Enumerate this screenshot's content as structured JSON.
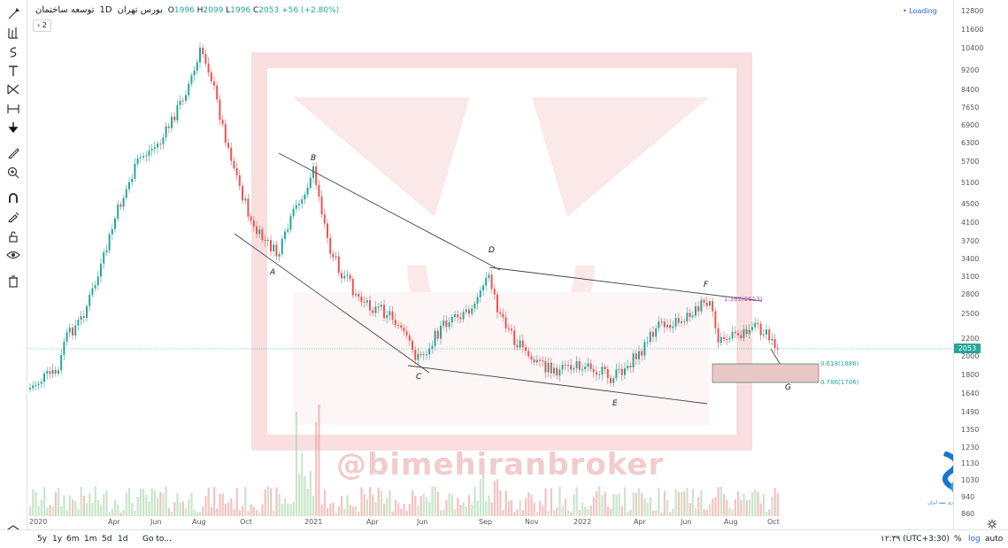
{
  "legend": {
    "symbol_name": "توسعه ساختمان",
    "interval": "1D",
    "exchange": "بورس تهران",
    "open_label": "O",
    "open": "1996",
    "high_label": "H",
    "high": "2099",
    "low_label": "L",
    "low": "1996",
    "close_label": "C",
    "close": "2053",
    "change": "+56 (+2.80%)"
  },
  "collapse_button": "2",
  "status": "Loading",
  "last_price": "2053",
  "price_axis": [
    "12800",
    "11600",
    "10400",
    "9200",
    "8400",
    "7650",
    "6900",
    "6300",
    "5700",
    "5100",
    "4500",
    "4100",
    "3700",
    "3400",
    "3100",
    "2800",
    "2500",
    "2200",
    "2000",
    "1800",
    "1640",
    "1490",
    "1350",
    "1230",
    "1130",
    "1030",
    "940",
    "860"
  ],
  "time_axis": [
    "2020",
    "Apr",
    "Jun",
    "Aug",
    "Oct",
    "2021",
    "Apr",
    "Jun",
    "Sep",
    "Nov",
    "2022",
    "Apr",
    "Jun",
    "Aug",
    "Oct"
  ],
  "wave_labels": [
    "A",
    "B",
    "C",
    "D",
    "E",
    "F",
    "G"
  ],
  "fib_levels": [
    {
      "ratio": "0.618",
      "price": "1886",
      "label": "0.618(1886)"
    },
    {
      "ratio": "0.786",
      "price": "1706",
      "label": "0.786(1706)"
    }
  ],
  "fib_top": "1.382(2613)",
  "watermark": "@bimehiranbroker",
  "logo_caption": "شرکت کارگزاری بیمه ایران",
  "bottom_bar": {
    "ranges": [
      "5y",
      "1y",
      "6m",
      "1m",
      "5d",
      "1d"
    ],
    "goto": "Go to...",
    "clock": "۱۲:۳۹ (UTC+3:30)",
    "percent": "%",
    "log": "log",
    "auto": "auto"
  },
  "colors": {
    "up": "#26a69a",
    "down": "#ef5350",
    "accent": "#2962ff",
    "watermark": "#f2cccc"
  },
  "tools": [
    "cursor-icon",
    "trend-line-icon",
    "brush-icon",
    "text-icon",
    "pattern-icon",
    "measure-icon",
    "arrow-down-icon",
    "ruler-icon",
    "zoom-in-icon",
    "magnet-icon",
    "lock-drawing-icon",
    "unlock-icon",
    "eye-icon",
    "trash-icon"
  ]
}
